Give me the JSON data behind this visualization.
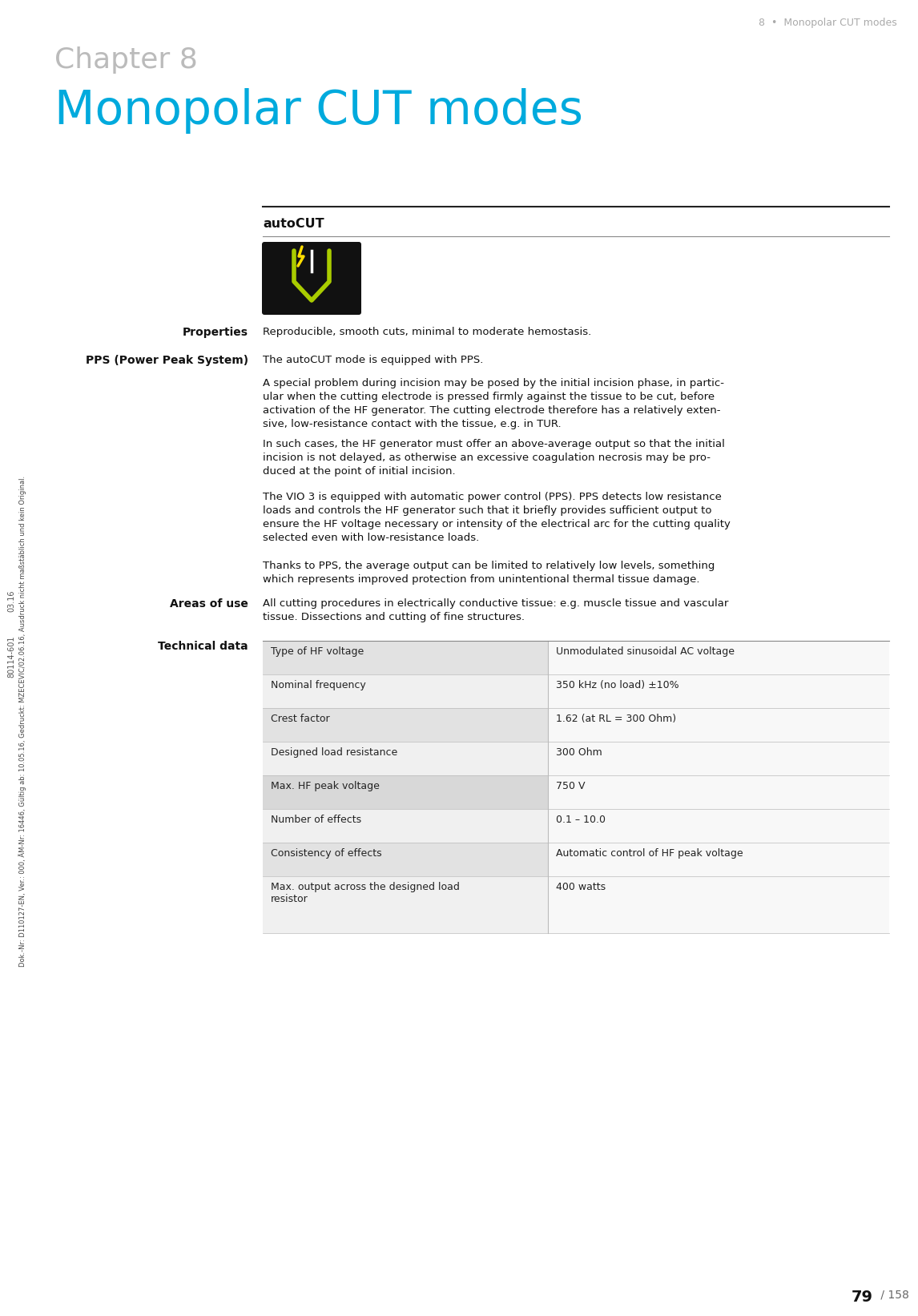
{
  "page_bg": "#ffffff",
  "header_text": "8  •  Monopolar CUT modes",
  "header_color": "#aaaaaa",
  "chapter_label": "Chapter 8",
  "chapter_label_color": "#bbbbbb",
  "chapter_title": "Monopolar CUT modes",
  "chapter_title_color": "#00aadd",
  "section_title": "autoCUT",
  "left_labels": [
    "Properties",
    "PPS (Power Peak System)",
    "Areas of use",
    "Technical data"
  ],
  "properties_text": "Reproducible, smooth cuts, minimal to moderate hemostasis.",
  "pps_text1": "The autoCUT mode is equipped with PPS.",
  "pps_text2": "A special problem during incision may be posed by the initial incision phase, in partic-\nular when the cutting electrode is pressed firmly against the tissue to be cut, before\nactivation of the HF generator. The cutting electrode therefore has a relatively exten-\nsive, low-resistance contact with the tissue, e.g. in TUR.",
  "pps_text3": "In such cases, the HF generator must offer an above-average output so that the initial\nincision is not delayed, as otherwise an excessive coagulation necrosis may be pro-\nduced at the point of initial incision.",
  "pps_text4": "The VIO 3 is equipped with automatic power control (PPS). PPS detects low resistance\nloads and controls the HF generator such that it briefly provides sufficient output to\nensure the HF voltage necessary or intensity of the electrical arc for the cutting quality\nselected even with low-resistance loads.",
  "pps_text5": "Thanks to PPS, the average output can be limited to relatively low levels, something\nwhich represents improved protection from unintentional thermal tissue damage.",
  "areas_text": "All cutting procedures in electrically conductive tissue: e.g. muscle tissue and vascular\ntissue. Dissections and cutting of fine structures.",
  "table_rows": [
    [
      "Type of HF voltage",
      "Unmodulated sinusoidal AC voltage"
    ],
    [
      "Nominal frequency",
      "350 kHz (no load) ±10%"
    ],
    [
      "Crest factor",
      "1.62 (at RL = 300 Ohm)"
    ],
    [
      "Designed load resistance",
      "300 Ohm"
    ],
    [
      "Max. HF peak voltage",
      "750 V"
    ],
    [
      "Number of effects",
      "0.1 – 10.0"
    ],
    [
      "Consistency of effects",
      "Automatic control of HF peak voltage"
    ],
    [
      "Max. output across the designed load\nresistor",
      "400 watts"
    ]
  ],
  "table_row_colors": [
    "#e2e2e2",
    "#f0f0f0",
    "#e2e2e2",
    "#f0f0f0",
    "#d8d8d8",
    "#f0f0f0",
    "#e2e2e2",
    "#f0f0f0"
  ],
  "footer_dok": "Dok.-Nr: D110127-EN, Ver.: 000, ÄM-Nr: 16446, Gültig ab: 10.05.16, Gedruckt: MZECEVIC/02.06.16, Ausdruck nicht maßstäblich und kein Original.",
  "page_number": "79",
  "page_total": "158",
  "sidebar_code": "80114-601",
  "sidebar_version": "03.16"
}
